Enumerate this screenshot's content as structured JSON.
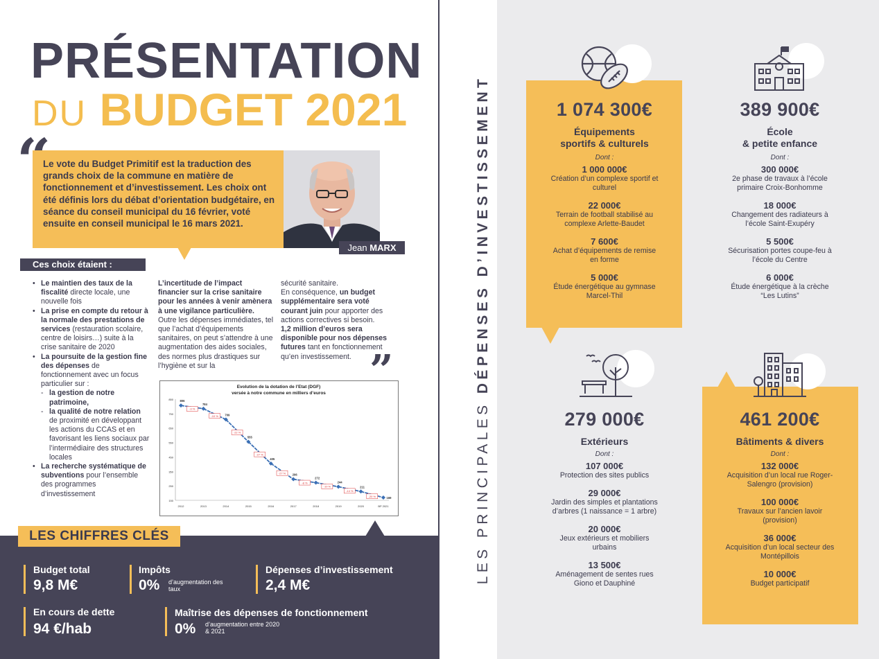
{
  "title": {
    "line1": "PRÉSENTATION",
    "du": "DU",
    "budget": "BUDGET 2021"
  },
  "quote": {
    "open_mark": "“",
    "close_mark": "”",
    "text": "Le vote du Budget Primitif est la traduction des grands choix de la commune en matière de fonctionnement et d’investissement. Les choix ont été définis lors du débat d’orientation budgétaire, en séance du conseil municipal du 16 février, voté ensuite en conseil municipal le 16 mars 2021.",
    "author_first": "Jean",
    "author_last": "MARX"
  },
  "choix": {
    "heading": "Ces choix étaient :",
    "bullets": [
      {
        "bold": "Le maintien des taux de la fiscalité",
        "rest": " directe locale, une nouvelle fois"
      },
      {
        "bold": "La prise en compte du retour à la normale des prestations de services",
        "rest": " (restauration scolaire, centre de loisirs…) suite à la crise sanitaire de 2020"
      },
      {
        "bold": "La poursuite de la gestion fine des dépenses",
        "rest": " de fonctionnement avec un focus particulier sur :"
      }
    ],
    "sub_bullets": [
      {
        "bold": "la gestion de notre patrimoine,",
        "rest": ""
      },
      {
        "bold": "la qualité de notre relation",
        "rest": " de proximité en développant les actions du CCAS et en favorisant les liens sociaux par l’intermédiaire des structures locales"
      }
    ],
    "last_bullet": {
      "bold": "La recherche systématique de subventions",
      "rest": " pour l’ensemble des programmes d’investissement"
    },
    "col2": {
      "bold": "L’incertitude de l’impact financier sur la crise sanitaire pour les années à venir amènera à une vigilance particulière.",
      "rest": " Outre les dépenses immédiates, tel que l’achat d’équipements sanitaires, on peut s’attendre à une augmentation des aides sociales, des normes plus drastiques sur l’hygiène et sur la"
    },
    "col3": {
      "p1": "sécurité sanitaire.",
      "p2_a": "En conséquence, ",
      "p2_b": "un budget supplémentaire sera voté courant juin",
      "p2_c": " pour apporter des actions correctives si besoin.",
      "p3_b": "1,2 million d’euros sera disponible pour nos dépenses futures",
      "p3_c": " tant en fonctionnement qu’en investissement."
    }
  },
  "chart_data": {
    "type": "line",
    "title": "Evolution de la dotation de l’Etat (DGF)",
    "subtitle": "versée à notre commune en milliers d’euros",
    "x": [
      "2012",
      "2013",
      "2014",
      "2015",
      "2016",
      "2017",
      "2018",
      "2019",
      "2020",
      "BP 2021"
    ],
    "y": [
      806,
      784,
      709,
      555,
      405,
      296,
      272,
      244,
      211,
      169
    ],
    "change_labels": [
      "-3 %",
      "-10 %",
      "-22 %",
      "-27 %",
      "-27 %",
      "-8 %",
      "-10 %",
      "-14 %",
      "-20 %"
    ],
    "yticks": [
      150,
      250,
      350,
      450,
      550,
      650,
      750,
      850
    ],
    "ylim": [
      150,
      850
    ],
    "color": "#3a6fb5"
  },
  "key_figures": {
    "title": "LES CHIFFRES CLÉS",
    "items": [
      {
        "label": "Budget total",
        "value": "9,8 M€"
      },
      {
        "label": "Impôts",
        "value": "0%",
        "note": "d’augmentation des taux"
      },
      {
        "label": "Dépenses d’investissement",
        "value": "2,4 M€"
      },
      {
        "label": "En cours de dette",
        "value": "94 €/hab"
      },
      {
        "label": "Maîtrise des dépenses de fonctionnement",
        "value": "0%",
        "note": "d’augmentation entre 2020 & 2021"
      }
    ]
  },
  "investments": {
    "vertical_title_thin": "LES PRINCIPALES",
    "vertical_title_bold": "DÉPENSES D’INVESTISSEMENT",
    "dont_label": "Dont :",
    "categories": [
      {
        "icon": "sports-balls-icon",
        "amount": "1 074 300€",
        "name_l1": "Équipements",
        "name_l2": "sportifs & culturels",
        "items": [
          {
            "amount": "1 000 000€",
            "desc": "Création d’un complexe sportif et culturel"
          },
          {
            "amount": "22 000€",
            "desc": "Terrain de football stabilisé au complexe Arlette-Baudet"
          },
          {
            "amount": "7 600€",
            "desc": "Achat d’équipements de remise en forme"
          },
          {
            "amount": "5 000€",
            "desc": "Étude énergétique au gymnase Marcel-Thil"
          }
        ]
      },
      {
        "icon": "school-building-icon",
        "amount": "389 900€",
        "name_l1": "École",
        "name_l2": "& petite enfance",
        "items": [
          {
            "amount": "300 000€",
            "desc": "2e phase de travaux à l’école primaire Croix-Bonhomme"
          },
          {
            "amount": "18 000€",
            "desc": "Changement des radiateurs à l’école Saint-Exupéry"
          },
          {
            "amount": "5 500€",
            "desc": "Sécurisation portes coupe-feu à l’école du Centre"
          },
          {
            "amount": "6 000€",
            "desc": "Étude énergétique à la crèche “Les Lutins”"
          }
        ]
      },
      {
        "icon": "park-tree-bench-icon",
        "amount": "279 000€",
        "name_l1": "Extérieurs",
        "name_l2": "",
        "items": [
          {
            "amount": "107 000€",
            "desc": "Protection des sites publics"
          },
          {
            "amount": "29 000€",
            "desc": "Jardin des simples et plantations d’arbres (1 naissance = 1 arbre)"
          },
          {
            "amount": "20 000€",
            "desc": "Jeux extérieurs et mobiliers urbains"
          },
          {
            "amount": "13 500€",
            "desc": "Aménagement de sentes rues Giono et Dauphiné"
          }
        ]
      },
      {
        "icon": "city-buildings-icon",
        "amount": "461 200€",
        "name_l1": "Bâtiments & divers",
        "name_l2": "",
        "items": [
          {
            "amount": "132 000€",
            "desc": "Acquisition d’un local rue Roger-Salengro (provision)"
          },
          {
            "amount": "100 000€",
            "desc": "Travaux sur l’ancien lavoir (provision)"
          },
          {
            "amount": "36 000€",
            "desc": "Acquisition d’un local secteur des Montépillois"
          },
          {
            "amount": "10 000€",
            "desc": "Budget participatif"
          }
        ]
      }
    ]
  }
}
